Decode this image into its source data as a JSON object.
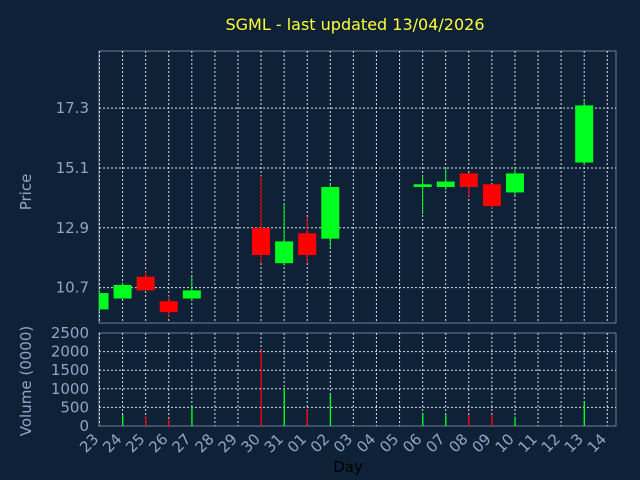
{
  "chart_data": {
    "type": "candlestick",
    "title": "SGML - last updated 13/04/2026",
    "ylabel_price": "Price",
    "ylabel_volume": "Volume (0000)",
    "xlabel": "Day",
    "price_ylim": [
      9.4,
      19.4
    ],
    "price_ticks": [
      "10.7",
      "12.9",
      "15.1",
      "17.3"
    ],
    "volume_ylim": [
      0,
      2500
    ],
    "volume_ticks": [
      "0",
      "500",
      "1000",
      "1500",
      "2000",
      "2500"
    ],
    "x_labels": [
      "23",
      "24",
      "25",
      "26",
      "27",
      "28",
      "29",
      "30",
      "31",
      "01",
      "02",
      "03",
      "04",
      "05",
      "06",
      "07",
      "08",
      "09",
      "10",
      "11",
      "12",
      "13",
      "14"
    ],
    "grid": true,
    "colors": {
      "background": "#0f2136",
      "plot_background": "#0f2136",
      "up": "#00ff1e",
      "down": "#ff0000",
      "grid": "#d8dde6",
      "title": "#ffff3a",
      "axis_text": "#8fa6c6"
    },
    "candles": [
      {
        "day": "23",
        "open": 9.9,
        "high": 10.6,
        "low": 9.8,
        "close": 10.5
      },
      {
        "day": "24",
        "open": 10.3,
        "high": 10.9,
        "low": 10.3,
        "close": 10.8
      },
      {
        "day": "25",
        "open": 11.1,
        "high": 11.3,
        "low": 10.6,
        "close": 10.6
      },
      {
        "day": "26",
        "open": 10.2,
        "high": 10.4,
        "low": 9.6,
        "close": 9.8
      },
      {
        "day": "27",
        "open": 10.3,
        "high": 11.1,
        "low": 10.2,
        "close": 10.6
      },
      {
        "day": "30",
        "open": 12.9,
        "high": 14.8,
        "low": 11.6,
        "close": 11.9
      },
      {
        "day": "31",
        "open": 11.6,
        "high": 13.8,
        "low": 11.5,
        "close": 12.4
      },
      {
        "day": "01",
        "open": 12.7,
        "high": 13.3,
        "low": 11.6,
        "close": 11.9
      },
      {
        "day": "02",
        "open": 12.5,
        "high": 14.5,
        "low": 12.2,
        "close": 14.4
      },
      {
        "day": "06",
        "open": 14.4,
        "high": 14.8,
        "low": 13.4,
        "close": 14.5
      },
      {
        "day": "07",
        "open": 14.4,
        "high": 15.1,
        "low": 14.3,
        "close": 14.6
      },
      {
        "day": "08",
        "open": 14.9,
        "high": 14.9,
        "low": 14.0,
        "close": 14.4
      },
      {
        "day": "09",
        "open": 14.5,
        "high": 14.5,
        "low": 13.6,
        "close": 13.7
      },
      {
        "day": "10",
        "open": 14.2,
        "high": 15.1,
        "low": 14.1,
        "close": 14.9
      },
      {
        "day": "13",
        "open": 15.3,
        "high": 17.6,
        "low": 15.2,
        "close": 17.4
      }
    ],
    "volume": [
      {
        "day": "23",
        "value": 20,
        "direction": "up"
      },
      {
        "day": "24",
        "value": 300,
        "direction": "up"
      },
      {
        "day": "25",
        "value": 250,
        "direction": "down"
      },
      {
        "day": "26",
        "value": 200,
        "direction": "down"
      },
      {
        "day": "27",
        "value": 550,
        "direction": "up"
      },
      {
        "day": "30",
        "value": 2050,
        "direction": "down"
      },
      {
        "day": "31",
        "value": 1000,
        "direction": "up"
      },
      {
        "day": "01",
        "value": 450,
        "direction": "down"
      },
      {
        "day": "02",
        "value": 850,
        "direction": "up"
      },
      {
        "day": "06",
        "value": 350,
        "direction": "up"
      },
      {
        "day": "07",
        "value": 300,
        "direction": "up"
      },
      {
        "day": "08",
        "value": 300,
        "direction": "down"
      },
      {
        "day": "09",
        "value": 300,
        "direction": "down"
      },
      {
        "day": "10",
        "value": 250,
        "direction": "up"
      },
      {
        "day": "13",
        "value": 650,
        "direction": "up"
      }
    ]
  }
}
